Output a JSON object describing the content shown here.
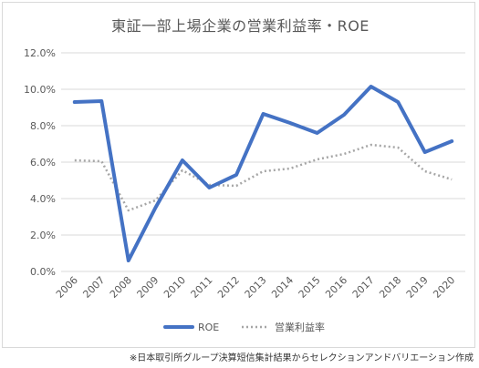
{
  "chart_data": {
    "type": "line",
    "title": "東証一部上場企業の営業利益率・ROE",
    "categories": [
      "2006",
      "2007",
      "2008",
      "2009",
      "2010",
      "2011",
      "2012",
      "2013",
      "2014",
      "2015",
      "2016",
      "2017",
      "2018",
      "2019",
      "2020"
    ],
    "series": [
      {
        "name": "ROE",
        "color": "#4472c4",
        "style": "solid",
        "values": [
          9.3,
          9.35,
          0.6,
          3.5,
          6.1,
          4.6,
          5.3,
          8.65,
          8.15,
          7.6,
          8.6,
          10.15,
          9.3,
          6.55,
          7.15
        ]
      },
      {
        "name": "営業利益率",
        "color": "#a6a6a6",
        "style": "dotted",
        "values": [
          6.1,
          6.05,
          3.35,
          3.9,
          5.55,
          4.75,
          4.7,
          5.5,
          5.65,
          6.15,
          6.45,
          6.95,
          6.8,
          5.5,
          5.05
        ]
      }
    ],
    "y_ticks": [
      "0.0%",
      "2.0%",
      "4.0%",
      "6.0%",
      "8.0%",
      "10.0%",
      "12.0%"
    ],
    "ylim": [
      0,
      12
    ],
    "grid": true,
    "legend_position": "bottom"
  },
  "source_note": "※日本取引所グループ決算短信集計結果からセレクションアンドバリエーション作成"
}
